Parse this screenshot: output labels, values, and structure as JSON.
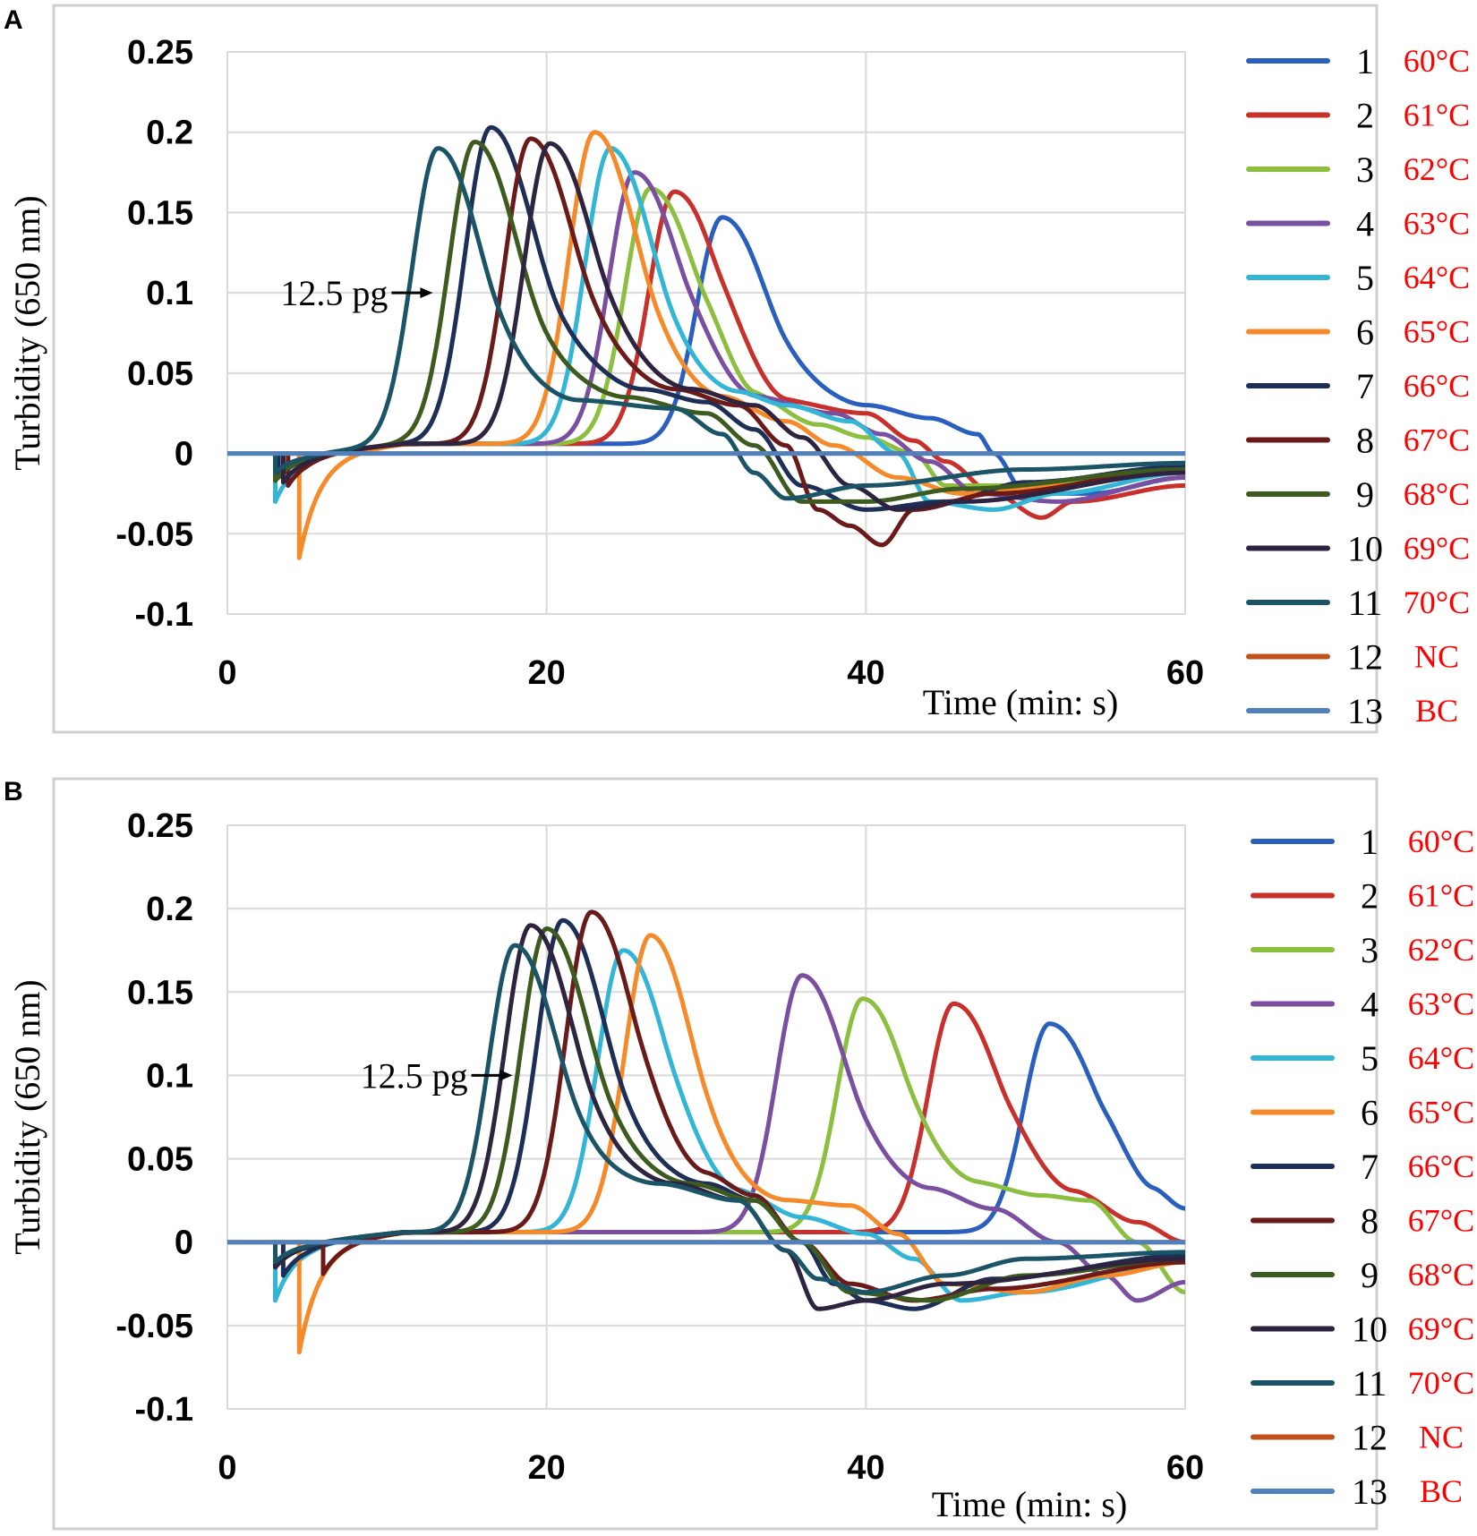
{
  "chart_data": [
    {
      "panel": "A",
      "type": "line",
      "xlabel": "Time (min: s)",
      "ylabel": "Turbidity (650 nm)",
      "xlim": [
        0,
        60
      ],
      "ylim": [
        -0.1,
        0.25
      ],
      "xticks": [
        "0",
        "20",
        "40",
        "60"
      ],
      "yticks": [
        "0.25",
        "0.2",
        "0.15",
        "0.1",
        "0.05",
        "0",
        "-0.05",
        "-0.1"
      ],
      "annotation": "12.5 pg",
      "annotation_target": [
        13.2,
        0.1
      ],
      "series": [
        {
          "name": "1",
          "label": "60°C",
          "color": "#2a5fbe",
          "peak_t": 31.0,
          "peak": 0.147,
          "onset": 3.0,
          "dip": -0.015,
          "tail": [
            [
              35,
              0.045
            ],
            [
              40,
              0.03
            ],
            [
              44,
              0.022
            ],
            [
              47,
              0.012
            ],
            [
              48,
              0.0
            ],
            [
              50,
              -0.025
            ],
            [
              54,
              -0.025
            ],
            [
              60,
              -0.015
            ]
          ]
        },
        {
          "name": "2",
          "label": "61°C",
          "color": "#c8302c",
          "peak_t": 28.0,
          "peak": 0.163,
          "onset": 3.0,
          "dip": -0.015,
          "tail": [
            [
              31,
              0.06
            ],
            [
              35,
              0.032
            ],
            [
              40,
              0.025
            ],
            [
              43,
              0.008
            ],
            [
              45,
              -0.005
            ],
            [
              48,
              -0.025
            ],
            [
              51,
              -0.04
            ],
            [
              53,
              -0.03
            ],
            [
              60,
              -0.02
            ]
          ]
        },
        {
          "name": "3",
          "label": "62°C",
          "color": "#8cbf3f",
          "peak_t": 26.5,
          "peak": 0.165,
          "onset": 3.0,
          "dip": -0.015,
          "tail": [
            [
              30,
              0.06
            ],
            [
              33,
              0.035
            ],
            [
              37,
              0.018
            ],
            [
              40,
              0.01
            ],
            [
              43,
              0.0
            ],
            [
              45,
              -0.02
            ],
            [
              50,
              -0.02
            ],
            [
              60,
              -0.012
            ]
          ]
        },
        {
          "name": "4",
          "label": "63°C",
          "color": "#7a4fa0",
          "peak_t": 25.5,
          "peak": 0.175,
          "onset": 3.0,
          "dip": -0.015,
          "tail": [
            [
              29,
              0.06
            ],
            [
              33,
              0.035
            ],
            [
              38,
              0.025
            ],
            [
              41,
              0.012
            ],
            [
              44,
              -0.005
            ],
            [
              47,
              -0.025
            ],
            [
              52,
              -0.03
            ],
            [
              60,
              -0.015
            ]
          ]
        },
        {
          "name": "5",
          "label": "64°C",
          "color": "#33b5d6",
          "peak_t": 24.0,
          "peak": 0.19,
          "onset": 3.0,
          "dip": -0.03,
          "tail": [
            [
              28,
              0.05
            ],
            [
              32,
              0.038
            ],
            [
              35,
              0.03
            ],
            [
              39,
              0.02
            ],
            [
              42,
              0.0
            ],
            [
              44,
              -0.03
            ],
            [
              48,
              -0.035
            ],
            [
              52,
              -0.025
            ],
            [
              60,
              -0.012
            ]
          ]
        },
        {
          "name": "6",
          "label": "65°C",
          "color": "#f58a2a",
          "peak_t": 23.0,
          "peak": 0.2,
          "onset": 4.5,
          "dip": -0.065,
          "tail": [
            [
              27,
              0.05
            ],
            [
              31,
              0.035
            ],
            [
              35,
              0.02
            ],
            [
              38,
              0.005
            ],
            [
              42,
              -0.015
            ],
            [
              46,
              -0.025
            ],
            [
              52,
              -0.02
            ],
            [
              60,
              -0.01
            ]
          ]
        },
        {
          "name": "7",
          "label": "66°C",
          "color": "#1d2f57",
          "peak_t": 16.5,
          "peak": 0.203,
          "onset": 3.2,
          "dip": -0.015,
          "tail": [
            [
              21,
              0.06
            ],
            [
              26,
              0.04
            ],
            [
              30,
              0.032
            ],
            [
              33,
              0.015
            ],
            [
              36,
              -0.02
            ],
            [
              40,
              -0.035
            ],
            [
              45,
              -0.03
            ],
            [
              50,
              -0.018
            ],
            [
              60,
              -0.008
            ]
          ]
        },
        {
          "name": "8",
          "label": "67°C",
          "color": "#6b1a1a",
          "peak_t": 19.0,
          "peak": 0.196,
          "onset": 3.8,
          "dip": -0.02,
          "tail": [
            [
              23,
              0.06
            ],
            [
              28,
              0.04
            ],
            [
              32,
              0.03
            ],
            [
              35,
              0.005
            ],
            [
              37,
              -0.035
            ],
            [
              39,
              -0.045
            ],
            [
              41,
              -0.057
            ],
            [
              43,
              -0.035
            ],
            [
              48,
              -0.025
            ],
            [
              60,
              -0.01
            ]
          ]
        },
        {
          "name": "9",
          "label": "68°C",
          "color": "#3d5a1f",
          "peak_t": 15.5,
          "peak": 0.194,
          "onset": 3.0,
          "dip": -0.017,
          "tail": [
            [
              20,
              0.05
            ],
            [
              25,
              0.035
            ],
            [
              30,
              0.025
            ],
            [
              33,
              0.005
            ],
            [
              36,
              -0.03
            ],
            [
              40,
              -0.03
            ],
            [
              46,
              -0.022
            ],
            [
              60,
              -0.01
            ]
          ]
        },
        {
          "name": "10",
          "label": "69°C",
          "color": "#2e2440",
          "peak_t": 20.2,
          "peak": 0.193,
          "onset": 3.5,
          "dip": -0.018,
          "tail": [
            [
              24,
              0.06
            ],
            [
              29,
              0.04
            ],
            [
              33,
              0.03
            ],
            [
              36,
              0.01
            ],
            [
              39,
              -0.02
            ],
            [
              42,
              -0.035
            ],
            [
              46,
              -0.03
            ],
            [
              60,
              -0.012
            ]
          ]
        },
        {
          "name": "11",
          "label": "70°C",
          "color": "#1b5466",
          "peak_t": 13.2,
          "peak": 0.19,
          "onset": 3.0,
          "dip": -0.012,
          "tail": [
            [
              17,
              0.05
            ],
            [
              22,
              0.033
            ],
            [
              28,
              0.028
            ],
            [
              31,
              0.012
            ],
            [
              33,
              -0.012
            ],
            [
              35,
              -0.028
            ],
            [
              40,
              -0.02
            ],
            [
              50,
              -0.01
            ],
            [
              60,
              -0.006
            ]
          ]
        },
        {
          "name": "12",
          "label": "NC",
          "color": "#c0511b",
          "flat": true,
          "value": 0.0
        },
        {
          "name": "13",
          "label": "BC",
          "color": "#4f81bd",
          "flat": true,
          "value": 0.0
        }
      ]
    },
    {
      "panel": "B",
      "type": "line",
      "xlabel": "Time (min: s)",
      "ylabel": "Turbidity (650 nm)",
      "xlim": [
        0,
        60
      ],
      "ylim": [
        -0.1,
        0.25
      ],
      "xticks": [
        "0",
        "20",
        "40",
        "60"
      ],
      "yticks": [
        "0.25",
        "0.2",
        "0.15",
        "0.1",
        "0.05",
        "0",
        "-0.05",
        "-0.1"
      ],
      "annotation": "12.5 pg",
      "annotation_target": [
        18.2,
        0.1
      ],
      "series": [
        {
          "name": "1",
          "label": "60°C",
          "color": "#2a5fbe",
          "peak_t": 51.5,
          "peak": 0.131,
          "onset": 3.0,
          "dip": -0.015,
          "tail": [
            [
              55,
              0.05
            ],
            [
              58,
              0.03
            ],
            [
              60,
              0.02
            ]
          ]
        },
        {
          "name": "2",
          "label": "61°C",
          "color": "#c8302c",
          "peak_t": 45.5,
          "peak": 0.143,
          "onset": 3.0,
          "dip": -0.015,
          "tail": [
            [
              49,
              0.05
            ],
            [
              53,
              0.03
            ],
            [
              57,
              0.012
            ],
            [
              60,
              0.0
            ]
          ]
        },
        {
          "name": "3",
          "label": "62°C",
          "color": "#8cbf3f",
          "peak_t": 39.8,
          "peak": 0.146,
          "onset": 3.0,
          "dip": -0.015,
          "tail": [
            [
              43,
              0.045
            ],
            [
              47,
              0.035
            ],
            [
              51,
              0.028
            ],
            [
              54,
              0.025
            ],
            [
              57,
              0.0
            ],
            [
              60,
              -0.03
            ]
          ]
        },
        {
          "name": "4",
          "label": "63°C",
          "color": "#7a4fa0",
          "peak_t": 36.0,
          "peak": 0.16,
          "onset": 3.0,
          "dip": -0.015,
          "tail": [
            [
              40,
              0.045
            ],
            [
              44,
              0.032
            ],
            [
              48,
              0.02
            ],
            [
              52,
              0.0
            ],
            [
              55,
              -0.02
            ],
            [
              57,
              -0.035
            ],
            [
              60,
              -0.024
            ]
          ]
        },
        {
          "name": "5",
          "label": "64°C",
          "color": "#33b5d6",
          "peak_t": 24.8,
          "peak": 0.175,
          "onset": 3.0,
          "dip": -0.035,
          "tail": [
            [
              28,
              0.05
            ],
            [
              32,
              0.03
            ],
            [
              36,
              0.015
            ],
            [
              40,
              0.005
            ],
            [
              43,
              -0.01
            ],
            [
              46,
              -0.035
            ],
            [
              50,
              -0.03
            ],
            [
              60,
              -0.012
            ]
          ]
        },
        {
          "name": "6",
          "label": "65°C",
          "color": "#f58a2a",
          "peak_t": 26.5,
          "peak": 0.184,
          "onset": 4.5,
          "dip": -0.066,
          "tail": [
            [
              30,
              0.04
            ],
            [
              35,
              0.025
            ],
            [
              39,
              0.022
            ],
            [
              42,
              0.005
            ],
            [
              45,
              -0.025
            ],
            [
              50,
              -0.03
            ],
            [
              55,
              -0.02
            ],
            [
              60,
              -0.012
            ]
          ]
        },
        {
          "name": "7",
          "label": "66°C",
          "color": "#1d2f57",
          "peak_t": 21.0,
          "peak": 0.193,
          "onset": 3.5,
          "dip": -0.02,
          "tail": [
            [
              25,
              0.05
            ],
            [
              30,
              0.035
            ],
            [
              33,
              0.025
            ],
            [
              36,
              0.0
            ],
            [
              38,
              -0.025
            ],
            [
              40,
              -0.035
            ],
            [
              43,
              -0.04
            ],
            [
              48,
              -0.022
            ],
            [
              60,
              -0.008
            ]
          ]
        },
        {
          "name": "8",
          "label": "67°C",
          "color": "#6b1a1a",
          "peak_t": 22.8,
          "peak": 0.198,
          "onset": 6.0,
          "dip": -0.02,
          "tail": [
            [
              26,
              0.06
            ],
            [
              30,
              0.04
            ],
            [
              33,
              0.028
            ],
            [
              36,
              0.0
            ],
            [
              39,
              -0.025
            ],
            [
              43,
              -0.035
            ],
            [
              48,
              -0.028
            ],
            [
              60,
              -0.012
            ]
          ]
        },
        {
          "name": "9",
          "label": "68°C",
          "color": "#3d5a1f",
          "peak_t": 20.0,
          "peak": 0.188,
          "onset": 3.0,
          "dip": -0.015,
          "tail": [
            [
              24,
              0.05
            ],
            [
              29,
              0.035
            ],
            [
              33,
              0.025
            ],
            [
              36,
              0.0
            ],
            [
              39,
              -0.03
            ],
            [
              44,
              -0.035
            ],
            [
              50,
              -0.02
            ],
            [
              60,
              -0.01
            ]
          ]
        },
        {
          "name": "10",
          "label": "69°C",
          "color": "#2e2440",
          "peak_t": 19.0,
          "peak": 0.19,
          "onset": 3.0,
          "dip": -0.015,
          "tail": [
            [
              23,
              0.05
            ],
            [
              28,
              0.035
            ],
            [
              32,
              0.025
            ],
            [
              35,
              -0.005
            ],
            [
              37,
              -0.04
            ],
            [
              40,
              -0.035
            ],
            [
              45,
              -0.025
            ],
            [
              60,
              -0.01
            ]
          ]
        },
        {
          "name": "11",
          "label": "70°C",
          "color": "#1b5466",
          "peak_t": 18.0,
          "peak": 0.178,
          "onset": 3.0,
          "dip": -0.012,
          "tail": [
            [
              22,
              0.045
            ],
            [
              27,
              0.035
            ],
            [
              32,
              0.025
            ],
            [
              35,
              -0.005
            ],
            [
              37,
              -0.022
            ],
            [
              40,
              -0.03
            ],
            [
              45,
              -0.02
            ],
            [
              50,
              -0.01
            ],
            [
              60,
              -0.006
            ]
          ]
        },
        {
          "name": "12",
          "label": "NC",
          "color": "#c0511b",
          "flat": true,
          "value": 0.0
        },
        {
          "name": "13",
          "label": "BC",
          "color": "#4f81bd",
          "flat": true,
          "value": 0.0
        }
      ]
    }
  ]
}
